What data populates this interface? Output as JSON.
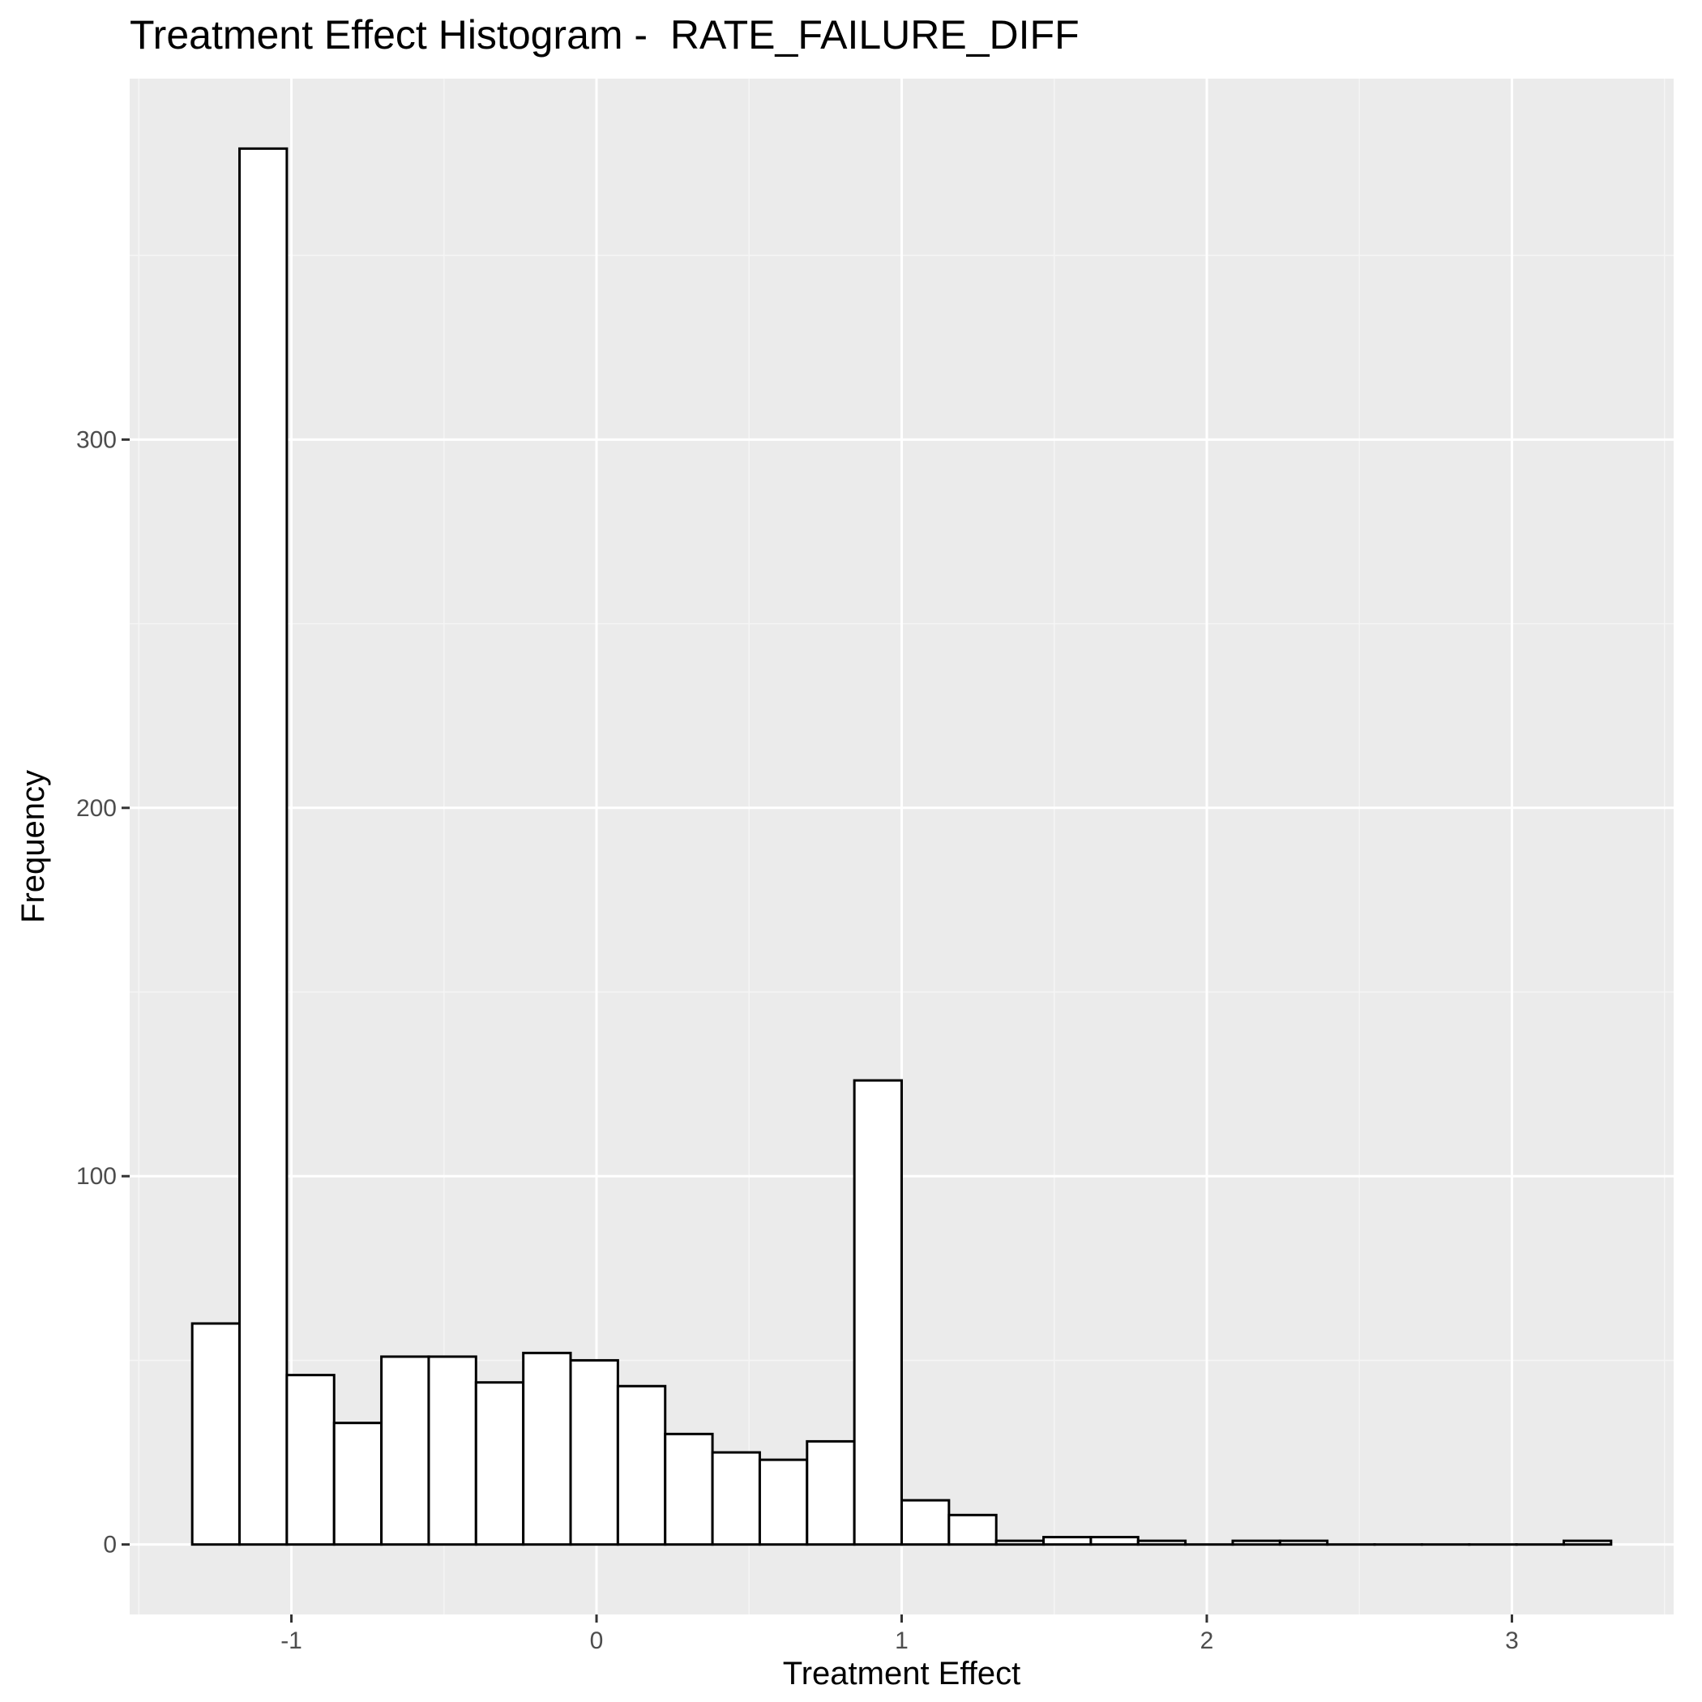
{
  "chart_data": {
    "type": "bar",
    "title": "Treatment Effect Histogram -  RATE_FAILURE_DIFF",
    "xlabel": "Treatment Effect",
    "ylabel": "Frequency",
    "xlim": [
      -1.53,
      3.53
    ],
    "ylim": [
      -19,
      398
    ],
    "x_ticks": [
      -1,
      0,
      1,
      2,
      3
    ],
    "x_tick_labels": [
      "-1",
      "0",
      "1",
      "2",
      "3"
    ],
    "y_ticks": [
      0,
      100,
      200,
      300
    ],
    "y_tick_labels": [
      "0",
      "100",
      "200",
      "300"
    ],
    "grid": true,
    "bin_width": 0.155,
    "bins": [
      {
        "x0": -1.325,
        "x1": -1.17,
        "count": 60
      },
      {
        "x0": -1.17,
        "x1": -1.015,
        "count": 379
      },
      {
        "x0": -1.015,
        "x1": -0.86,
        "count": 46
      },
      {
        "x0": -0.86,
        "x1": -0.705,
        "count": 33
      },
      {
        "x0": -0.705,
        "x1": -0.55,
        "count": 51
      },
      {
        "x0": -0.55,
        "x1": -0.395,
        "count": 51
      },
      {
        "x0": -0.395,
        "x1": -0.24,
        "count": 44
      },
      {
        "x0": -0.24,
        "x1": -0.085,
        "count": 52
      },
      {
        "x0": -0.085,
        "x1": 0.07,
        "count": 50
      },
      {
        "x0": 0.07,
        "x1": 0.225,
        "count": 43
      },
      {
        "x0": 0.225,
        "x1": 0.38,
        "count": 30
      },
      {
        "x0": 0.38,
        "x1": 0.535,
        "count": 25
      },
      {
        "x0": 0.535,
        "x1": 0.69,
        "count": 23
      },
      {
        "x0": 0.69,
        "x1": 0.845,
        "count": 28
      },
      {
        "x0": 0.845,
        "x1": 1.0,
        "count": 126
      },
      {
        "x0": 1.0,
        "x1": 1.155,
        "count": 12
      },
      {
        "x0": 1.155,
        "x1": 1.31,
        "count": 8
      },
      {
        "x0": 1.31,
        "x1": 1.465,
        "count": 1
      },
      {
        "x0": 1.465,
        "x1": 1.62,
        "count": 2
      },
      {
        "x0": 1.62,
        "x1": 1.775,
        "count": 2
      },
      {
        "x0": 1.775,
        "x1": 1.93,
        "count": 1
      },
      {
        "x0": 1.93,
        "x1": 2.085,
        "count": 0
      },
      {
        "x0": 2.085,
        "x1": 2.24,
        "count": 1
      },
      {
        "x0": 2.24,
        "x1": 2.395,
        "count": 1
      },
      {
        "x0": 2.395,
        "x1": 2.55,
        "count": 0
      },
      {
        "x0": 2.55,
        "x1": 2.705,
        "count": 0
      },
      {
        "x0": 2.705,
        "x1": 2.86,
        "count": 0
      },
      {
        "x0": 2.86,
        "x1": 3.015,
        "count": 0
      },
      {
        "x0": 3.015,
        "x1": 3.17,
        "count": 0
      },
      {
        "x0": 3.17,
        "x1": 3.325,
        "count": 1
      }
    ],
    "colors": {
      "panel": "#ebebeb",
      "grid_major": "#ffffff",
      "grid_minor": "#f5f5f5",
      "bar_fill": "#ffffff",
      "bar_stroke": "#000000",
      "tick": "#333333"
    }
  }
}
